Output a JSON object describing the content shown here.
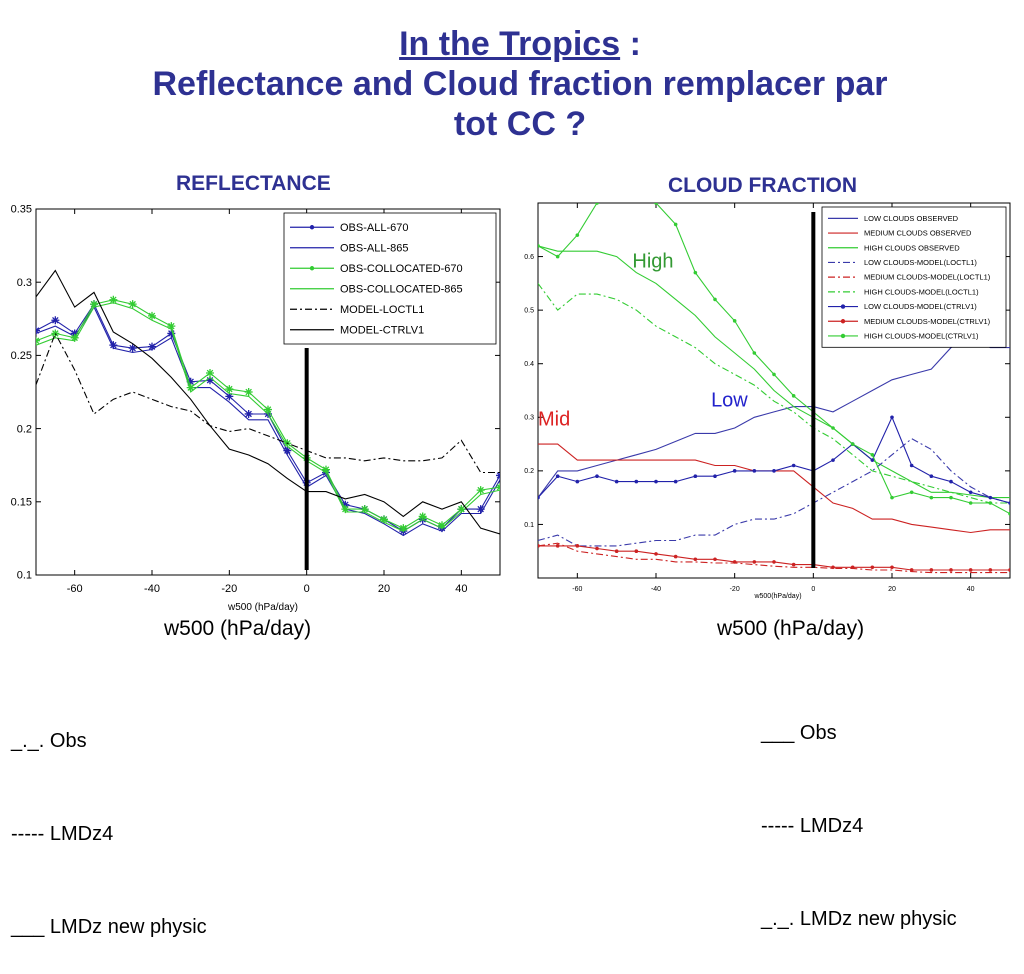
{
  "title": {
    "line1_underlined": "In the Tropics",
    "line1_suffix": " :",
    "line2": "Reflectance and Cloud fraction remplacer par",
    "line3": "tot CC ?"
  },
  "left_caption": "REFLECTANCE",
  "right_caption": "CLOUD FRACTION",
  "left_xcaption": "w500 (hPa/day)",
  "right_xcaption": "w500 (hPa/day)",
  "left_key": [
    "_._. Obs",
    "----- LMDz4",
    "___ LMDz new physic"
  ],
  "right_key": [
    "___ Obs",
    "----- LMDz4",
    "_._. LMDz new physic"
  ],
  "colors": {
    "title": "#2e3192",
    "blue": "#2222aa",
    "green": "#33cc33",
    "red": "#cc2222",
    "black": "#000000"
  },
  "chart_data": [
    {
      "type": "line",
      "title": "REFLECTANCE",
      "xlabel": "w500 (hPa/day)",
      "ylabel": "",
      "xlim": [
        -70,
        50
      ],
      "ylim": [
        0.1,
        0.35
      ],
      "xticks": [
        -60,
        -40,
        -20,
        0,
        20,
        40
      ],
      "yticks": [
        0.1,
        0.15,
        0.2,
        0.25,
        0.3,
        0.35
      ],
      "x": [
        -70,
        -65,
        -60,
        -55,
        -50,
        -45,
        -40,
        -35,
        -30,
        -25,
        -20,
        -15,
        -10,
        -5,
        0,
        5,
        10,
        15,
        20,
        25,
        30,
        35,
        40,
        45,
        50
      ],
      "series": [
        {
          "name": "OBS-ALL-670",
          "color": "#2222aa",
          "dash": "solid",
          "marker": "star",
          "values": [
            0.267,
            0.274,
            0.265,
            0.285,
            0.257,
            0.255,
            0.256,
            0.265,
            0.232,
            0.233,
            0.222,
            0.21,
            0.21,
            0.185,
            0.163,
            0.17,
            0.148,
            0.145,
            0.138,
            0.13,
            0.138,
            0.132,
            0.145,
            0.145,
            0.168
          ]
        },
        {
          "name": "OBS-ALL-865",
          "color": "#2222aa",
          "dash": "solid",
          "marker": "none",
          "values": [
            0.265,
            0.27,
            0.263,
            0.283,
            0.255,
            0.252,
            0.254,
            0.262,
            0.228,
            0.228,
            0.218,
            0.206,
            0.206,
            0.182,
            0.16,
            0.168,
            0.145,
            0.142,
            0.135,
            0.127,
            0.135,
            0.13,
            0.142,
            0.142,
            0.165
          ]
        },
        {
          "name": "OBS-COLLOCATED-670",
          "color": "#33cc33",
          "dash": "solid",
          "marker": "star",
          "values": [
            0.26,
            0.265,
            0.262,
            0.285,
            0.288,
            0.285,
            0.277,
            0.27,
            0.228,
            0.238,
            0.227,
            0.225,
            0.213,
            0.19,
            0.18,
            0.172,
            0.145,
            0.145,
            0.138,
            0.132,
            0.14,
            0.134,
            0.145,
            0.158,
            0.16
          ]
        },
        {
          "name": "OBS-COLLOCATED-865",
          "color": "#33cc33",
          "dash": "solid",
          "marker": "none",
          "values": [
            0.257,
            0.262,
            0.26,
            0.283,
            0.286,
            0.282,
            0.274,
            0.268,
            0.225,
            0.235,
            0.224,
            0.222,
            0.21,
            0.188,
            0.178,
            0.17,
            0.143,
            0.143,
            0.136,
            0.13,
            0.138,
            0.132,
            0.143,
            0.155,
            0.158
          ]
        },
        {
          "name": "MODEL-LOCTL1",
          "color": "#000000",
          "dash": "dashdot",
          "marker": "none",
          "values": [
            0.23,
            0.265,
            0.24,
            0.21,
            0.22,
            0.225,
            0.22,
            0.215,
            0.212,
            0.202,
            0.198,
            0.2,
            0.195,
            0.19,
            0.185,
            0.18,
            0.18,
            0.178,
            0.18,
            0.178,
            0.178,
            0.18,
            0.192,
            0.17,
            0.17
          ]
        },
        {
          "name": "MODEL-CTRLV1",
          "color": "#000000",
          "dash": "solid",
          "marker": "none",
          "values": [
            0.29,
            0.308,
            0.283,
            0.293,
            0.266,
            0.258,
            0.248,
            0.235,
            0.22,
            0.202,
            0.186,
            0.182,
            0.176,
            0.166,
            0.157,
            0.157,
            0.152,
            0.155,
            0.15,
            0.14,
            0.15,
            0.145,
            0.15,
            0.132,
            0.128
          ]
        }
      ]
    },
    {
      "type": "line",
      "title": "CLOUD FRACTION",
      "xlabel": "w500(hPa/day)",
      "ylabel": "",
      "xlim": [
        -70,
        50
      ],
      "ylim": [
        0,
        0.7
      ],
      "xticks": [
        -60,
        -40,
        -20,
        0,
        20,
        40
      ],
      "yticks": [
        0.1,
        0.2,
        0.3,
        0.4,
        0.5,
        0.6
      ],
      "x": [
        -70,
        -65,
        -60,
        -55,
        -50,
        -45,
        -40,
        -35,
        -30,
        -25,
        -20,
        -15,
        -10,
        -5,
        0,
        5,
        10,
        15,
        20,
        25,
        30,
        35,
        40,
        45,
        50
      ],
      "annotations": [
        {
          "text": "High",
          "x": -46,
          "y": 0.58,
          "color": "#339933"
        },
        {
          "text": "Low",
          "x": -26,
          "y": 0.32,
          "color": "#2222cc"
        },
        {
          "text": "Mid",
          "x": -70,
          "y": 0.285,
          "color": "#dd2222"
        }
      ],
      "series": [
        {
          "name": "LOW CLOUDS OBSERVED",
          "color": "#3a3aaa",
          "dash": "solid",
          "marker": "none",
          "values": [
            0.15,
            0.2,
            0.2,
            0.21,
            0.22,
            0.23,
            0.24,
            0.255,
            0.27,
            0.27,
            0.28,
            0.3,
            0.31,
            0.32,
            0.32,
            0.31,
            0.33,
            0.35,
            0.37,
            0.38,
            0.39,
            0.43,
            0.45,
            0.43,
            0.43
          ]
        },
        {
          "name": "MEDIUM CLOUDS OBSERVED",
          "color": "#cc2222",
          "dash": "solid",
          "marker": "none",
          "values": [
            0.25,
            0.25,
            0.22,
            0.22,
            0.22,
            0.22,
            0.22,
            0.22,
            0.22,
            0.21,
            0.21,
            0.2,
            0.2,
            0.2,
            0.17,
            0.14,
            0.13,
            0.11,
            0.11,
            0.1,
            0.095,
            0.09,
            0.085,
            0.09,
            0.09
          ]
        },
        {
          "name": "HIGH CLOUDS OBSERVED",
          "color": "#33cc33",
          "dash": "solid",
          "marker": "none",
          "values": [
            0.62,
            0.61,
            0.61,
            0.61,
            0.6,
            0.57,
            0.55,
            0.52,
            0.49,
            0.45,
            0.42,
            0.39,
            0.35,
            0.32,
            0.3,
            0.28,
            0.25,
            0.22,
            0.2,
            0.18,
            0.16,
            0.16,
            0.155,
            0.15,
            0.15
          ]
        },
        {
          "name": "LOW CLOUDS-MODEL(LOCTL1)",
          "color": "#3a3aaa",
          "dash": "dashdot",
          "marker": "none",
          "values": [
            0.07,
            0.08,
            0.06,
            0.06,
            0.06,
            0.065,
            0.07,
            0.07,
            0.08,
            0.08,
            0.1,
            0.11,
            0.11,
            0.12,
            0.14,
            0.16,
            0.18,
            0.2,
            0.23,
            0.26,
            0.24,
            0.2,
            0.17,
            0.15,
            0.14
          ]
        },
        {
          "name": "MEDIUM CLOUDS-MODEL(LOCTL1)",
          "color": "#cc2222",
          "dash": "dashdot",
          "marker": "none",
          "values": [
            0.06,
            0.065,
            0.05,
            0.045,
            0.04,
            0.035,
            0.035,
            0.03,
            0.03,
            0.028,
            0.028,
            0.025,
            0.022,
            0.02,
            0.02,
            0.018,
            0.018,
            0.015,
            0.015,
            0.012,
            0.01,
            0.01,
            0.01,
            0.01,
            0.01
          ]
        },
        {
          "name": "HIGH CLOUDS-MODEL(LOCTL1)",
          "color": "#33cc33",
          "dash": "dashdot",
          "marker": "none",
          "values": [
            0.55,
            0.5,
            0.53,
            0.53,
            0.52,
            0.5,
            0.47,
            0.45,
            0.43,
            0.4,
            0.38,
            0.36,
            0.33,
            0.31,
            0.28,
            0.26,
            0.23,
            0.2,
            0.19,
            0.18,
            0.17,
            0.16,
            0.15,
            0.14,
            0.14
          ]
        },
        {
          "name": "LOW CLOUDS-MODEL(CTRLV1)",
          "color": "#2222aa",
          "dash": "solid",
          "marker": "plus",
          "values": [
            0.15,
            0.19,
            0.18,
            0.19,
            0.18,
            0.18,
            0.18,
            0.18,
            0.19,
            0.19,
            0.2,
            0.2,
            0.2,
            0.21,
            0.2,
            0.22,
            0.25,
            0.22,
            0.3,
            0.21,
            0.19,
            0.18,
            0.16,
            0.15,
            0.14
          ]
        },
        {
          "name": "MEDIUM CLOUDS-MODEL(CTRLV1)",
          "color": "#cc2222",
          "dash": "solid",
          "marker": "plus",
          "values": [
            0.06,
            0.06,
            0.06,
            0.055,
            0.05,
            0.05,
            0.045,
            0.04,
            0.035,
            0.035,
            0.03,
            0.03,
            0.03,
            0.025,
            0.025,
            0.02,
            0.02,
            0.02,
            0.02,
            0.015,
            0.015,
            0.015,
            0.015,
            0.015,
            0.015
          ]
        },
        {
          "name": "HIGH CLOUDS-MODEL(CTRLV1)",
          "color": "#33cc33",
          "dash": "solid",
          "marker": "plus",
          "values": [
            0.62,
            0.6,
            0.64,
            0.7,
            0.72,
            0.72,
            0.7,
            0.66,
            0.57,
            0.52,
            0.48,
            0.42,
            0.38,
            0.34,
            0.31,
            0.28,
            0.25,
            0.23,
            0.15,
            0.16,
            0.15,
            0.15,
            0.14,
            0.14,
            0.12
          ]
        }
      ]
    }
  ]
}
